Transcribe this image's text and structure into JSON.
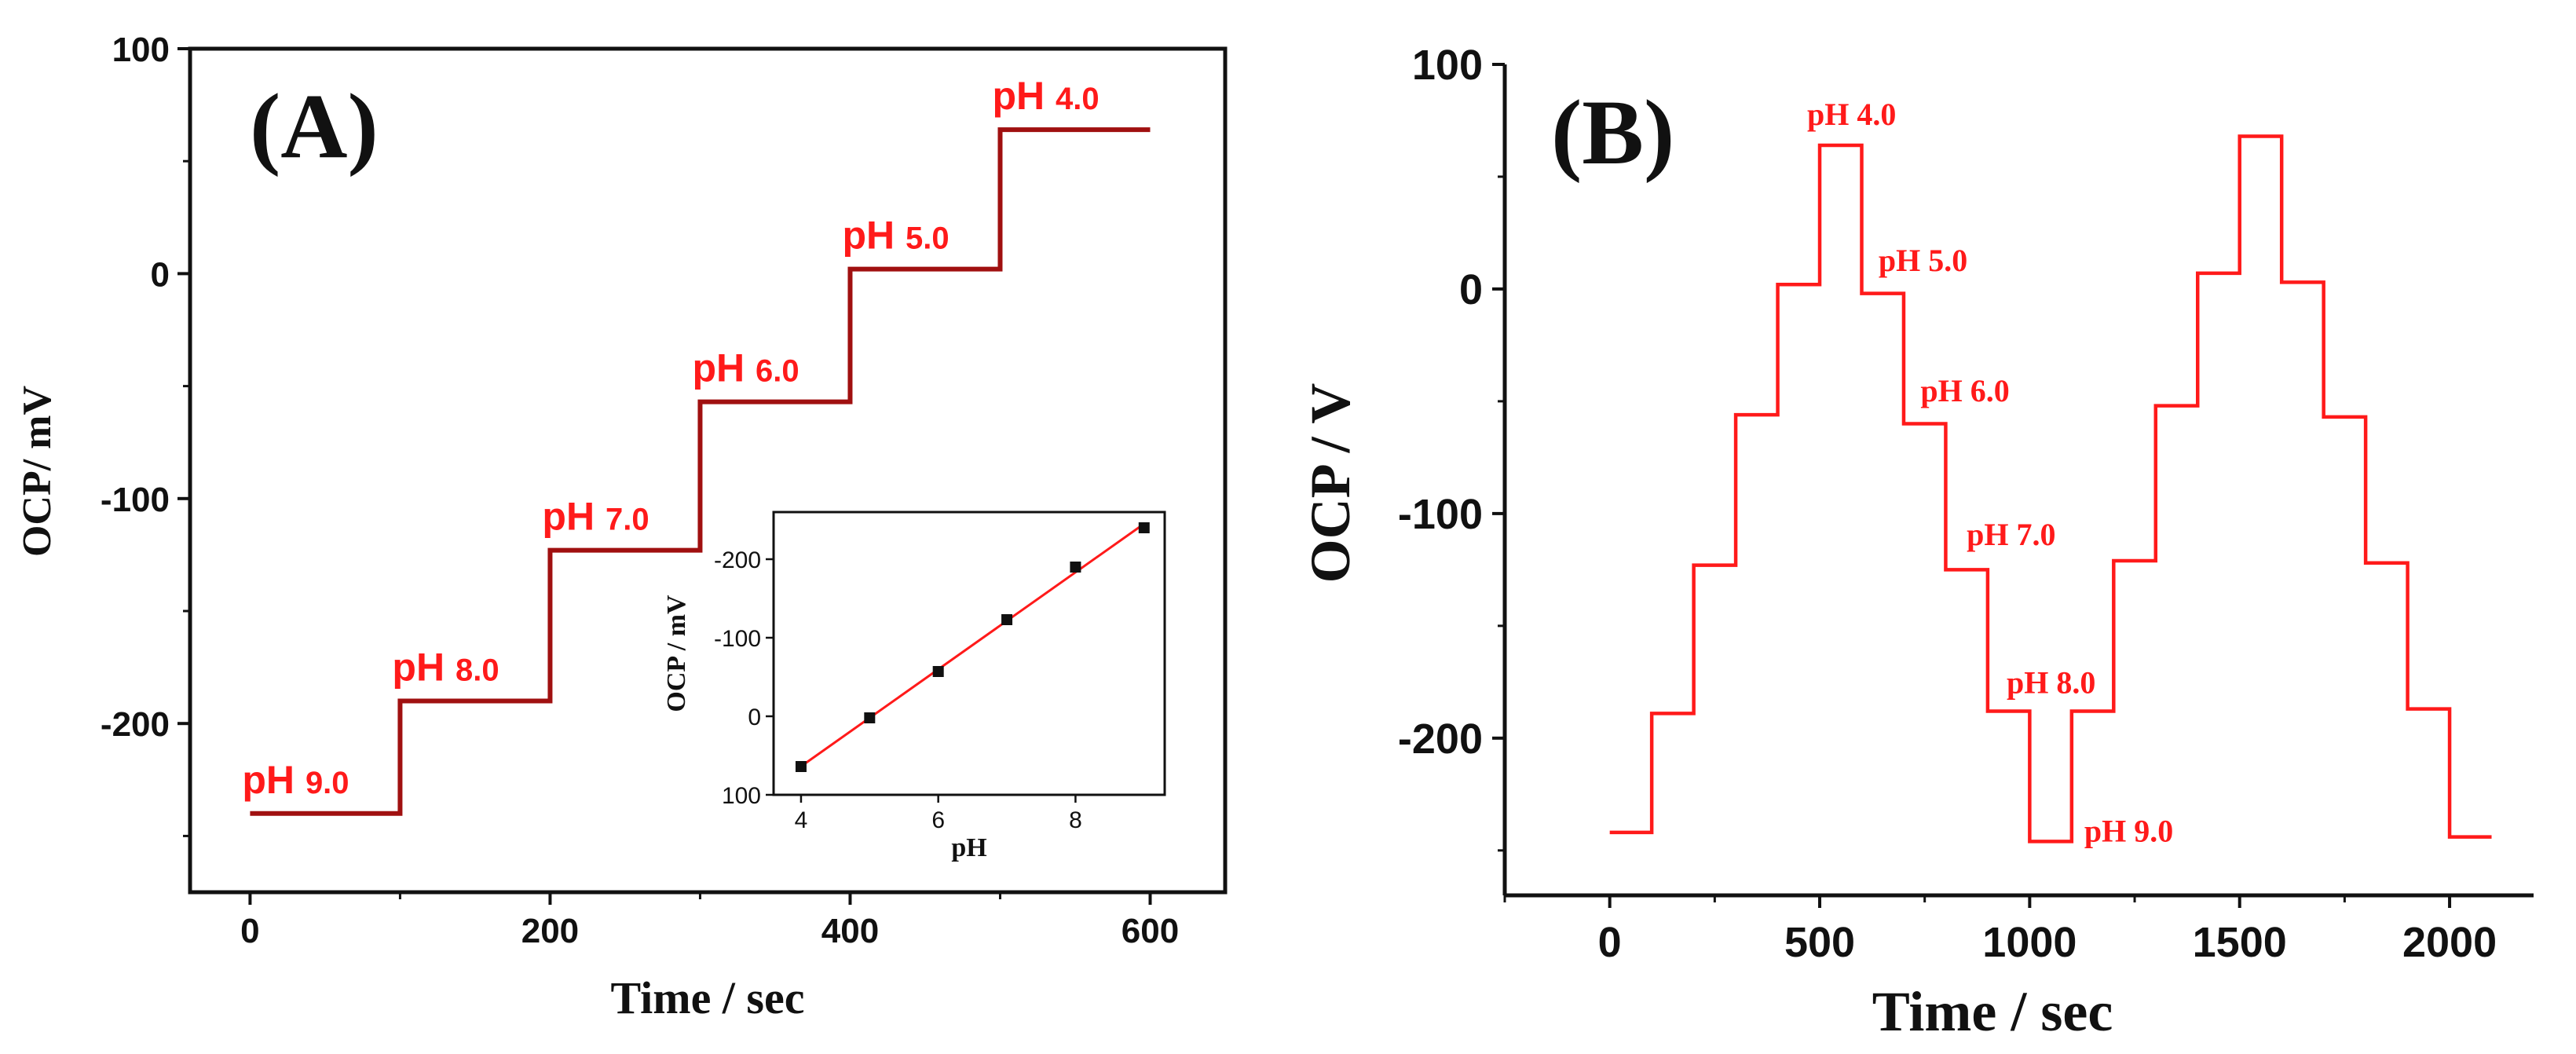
{
  "chart_data": [
    {
      "panel": "(A)",
      "type": "line",
      "xlabel": "Time / sec",
      "ylabel": "OCP/ mV",
      "xlim": [
        -40,
        650
      ],
      "ylim": [
        -275,
        100
      ],
      "xticks": [
        0,
        200,
        400,
        600
      ],
      "yticks": [
        100,
        0,
        -100,
        -200
      ],
      "series_color": "#a01010",
      "steps": [
        {
          "x0": 0,
          "x1": 100,
          "y": -240,
          "label_main": "pH",
          "label_val": "9.0"
        },
        {
          "x0": 100,
          "x1": 200,
          "y": -190,
          "label_main": "pH",
          "label_val": "8.0"
        },
        {
          "x0": 200,
          "x1": 300,
          "y": -123,
          "label_main": "pH",
          "label_val": "7.0"
        },
        {
          "x0": 300,
          "x1": 400,
          "y": -57,
          "label_main": "pH",
          "label_val": "6.0"
        },
        {
          "x0": 400,
          "x1": 500,
          "y": 2,
          "label_main": "pH",
          "label_val": "5.0"
        },
        {
          "x0": 500,
          "x1": 600,
          "y": 64,
          "label_main": "pH",
          "label_val": "4.0"
        }
      ],
      "annotation_color": "#ff1a1a",
      "inset": {
        "type": "scatter",
        "xlabel": "pH",
        "ylabel": "OCP / mV",
        "xlim": [
          3.6,
          9.3
        ],
        "ylim": [
          100,
          -260
        ],
        "xticks": [
          4,
          6,
          8
        ],
        "yticks": [
          -200,
          -100,
          0,
          100
        ],
        "x": [
          4,
          5,
          6,
          7,
          8,
          9
        ],
        "y": [
          64,
          2,
          -57,
          -123,
          -190,
          -240
        ],
        "fit_color": "#ff1a1a",
        "point_color": "#111111"
      }
    },
    {
      "panel": "(B)",
      "type": "line",
      "xlabel": "Time / sec",
      "ylabel": "OCP / V",
      "xlim": [
        -250,
        2200
      ],
      "ylim": [
        -270,
        100
      ],
      "xticks": [
        0,
        500,
        1000,
        1500,
        2000
      ],
      "yticks": [
        100,
        0,
        -100,
        -200
      ],
      "series_color": "#ff1a1a",
      "steps": [
        {
          "x0": 0,
          "x1": 100,
          "y": -242
        },
        {
          "x0": 100,
          "x1": 200,
          "y": -189
        },
        {
          "x0": 200,
          "x1": 300,
          "y": -123
        },
        {
          "x0": 300,
          "x1": 400,
          "y": -56
        },
        {
          "x0": 400,
          "x1": 500,
          "y": 2
        },
        {
          "x0": 500,
          "x1": 600,
          "y": 64
        },
        {
          "x0": 600,
          "x1": 700,
          "y": -2
        },
        {
          "x0": 700,
          "x1": 800,
          "y": -60
        },
        {
          "x0": 800,
          "x1": 900,
          "y": -125
        },
        {
          "x0": 900,
          "x1": 1000,
          "y": -188
        },
        {
          "x0": 1000,
          "x1": 1100,
          "y": -246
        },
        {
          "x0": 1100,
          "x1": 1200,
          "y": -188
        },
        {
          "x0": 1200,
          "x1": 1300,
          "y": -121
        },
        {
          "x0": 1300,
          "x1": 1400,
          "y": -52
        },
        {
          "x0": 1400,
          "x1": 1500,
          "y": 7
        },
        {
          "x0": 1500,
          "x1": 1600,
          "y": 68
        },
        {
          "x0": 1600,
          "x1": 1700,
          "y": 3
        },
        {
          "x0": 1700,
          "x1": 1800,
          "y": -57
        },
        {
          "x0": 1800,
          "x1": 1900,
          "y": -122
        },
        {
          "x0": 1900,
          "x1": 2000,
          "y": -187
        },
        {
          "x0": 2000,
          "x1": 2100,
          "y": -244
        }
      ],
      "annotations": [
        {
          "text": "pH 4.0",
          "x": 470,
          "y": 73
        },
        {
          "text": "pH 5.0",
          "x": 640,
          "y": 8
        },
        {
          "text": "pH 6.0",
          "x": 740,
          "y": -50
        },
        {
          "text": "pH 7.0",
          "x": 850,
          "y": -114
        },
        {
          "text": "pH 8.0",
          "x": 945,
          "y": -180
        },
        {
          "text": "pH 9.0",
          "x": 1130,
          "y": -246
        }
      ]
    }
  ]
}
